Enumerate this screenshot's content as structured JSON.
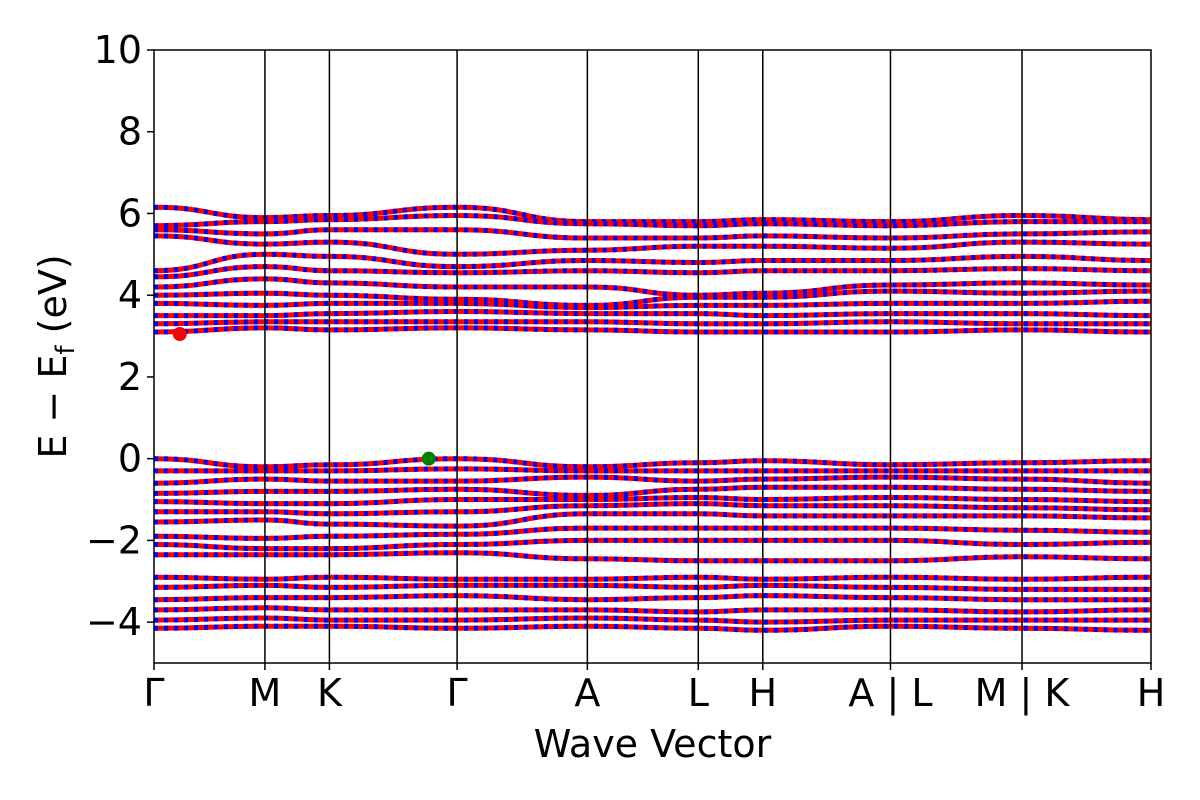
{
  "chart_data": {
    "type": "line",
    "xlabel": "Wave Vector",
    "ylabel_main": "E − E",
    "ylabel_sub": "f",
    "ylabel_unit": "(eV)",
    "ylim": [
      -5,
      10
    ],
    "yticks": [
      {
        "value": 10,
        "label": "10"
      },
      {
        "value": 8,
        "label": "8"
      },
      {
        "value": 6,
        "label": "6"
      },
      {
        "value": 4,
        "label": "4"
      },
      {
        "value": 2,
        "label": "2"
      },
      {
        "value": 0,
        "label": "0"
      },
      {
        "value": -2,
        "label": "−2"
      },
      {
        "value": -4,
        "label": "−4"
      }
    ],
    "xlim": [
      0,
      7.73
    ],
    "kpoints": [
      {
        "x": 0.0,
        "label": "Γ"
      },
      {
        "x": 0.86,
        "label": "M"
      },
      {
        "x": 1.36,
        "label": "K"
      },
      {
        "x": 2.35,
        "label": "Γ"
      },
      {
        "x": 3.36,
        "label": "A"
      },
      {
        "x": 4.22,
        "label": "L"
      },
      {
        "x": 4.72,
        "label": "H"
      },
      {
        "x": 5.71,
        "label": "A | L"
      },
      {
        "x": 6.73,
        "label": "M | K"
      },
      {
        "x": 7.73,
        "label": "H"
      }
    ],
    "cbm": {
      "x": 0.2,
      "y": 3.05,
      "color": "#ff0000"
    },
    "vbm": {
      "x": 2.13,
      "y": 0.0,
      "color": "#008000"
    },
    "band_colors": [
      "#ff0000",
      "#0000ff"
    ],
    "bands_description": "spin-up (red) and spin-down (blue) overlapping bands",
    "conduction_bands": [
      [
        6.15,
        5.9,
        5.95,
        6.15,
        5.8,
        5.8,
        5.85,
        5.8,
        5.95,
        5.85
      ],
      [
        5.7,
        5.8,
        5.85,
        5.95,
        5.75,
        5.7,
        5.75,
        5.7,
        5.8,
        5.8
      ],
      [
        5.6,
        5.5,
        5.6,
        5.6,
        5.4,
        5.4,
        5.45,
        5.4,
        5.5,
        5.55
      ],
      [
        5.45,
        5.25,
        5.3,
        5.0,
        5.1,
        5.2,
        5.2,
        5.15,
        5.3,
        5.25
      ],
      [
        4.6,
        5.0,
        4.95,
        4.7,
        4.85,
        4.8,
        4.85,
        4.85,
        4.95,
        4.85
      ],
      [
        4.45,
        4.7,
        4.6,
        4.55,
        4.6,
        4.55,
        4.6,
        4.6,
        4.65,
        4.6
      ],
      [
        4.2,
        4.4,
        4.3,
        4.2,
        4.2,
        4.0,
        4.05,
        4.25,
        4.3,
        4.25
      ],
      [
        4.0,
        4.05,
        4.0,
        3.9,
        3.75,
        3.95,
        3.95,
        4.1,
        4.05,
        4.1
      ],
      [
        3.8,
        3.75,
        3.8,
        3.8,
        3.7,
        3.75,
        3.75,
        3.8,
        3.8,
        3.85
      ],
      [
        3.5,
        3.5,
        3.55,
        3.6,
        3.55,
        3.55,
        3.5,
        3.55,
        3.55,
        3.5
      ],
      [
        3.3,
        3.35,
        3.35,
        3.35,
        3.35,
        3.3,
        3.3,
        3.35,
        3.3,
        3.3
      ],
      [
        3.1,
        3.2,
        3.15,
        3.2,
        3.15,
        3.1,
        3.1,
        3.1,
        3.15,
        3.1
      ]
    ],
    "valence_bands": [
      [
        0.0,
        -0.2,
        -0.15,
        0.0,
        -0.2,
        -0.1,
        -0.05,
        -0.15,
        -0.1,
        -0.05
      ],
      [
        -0.3,
        -0.3,
        -0.3,
        -0.25,
        -0.3,
        -0.3,
        -0.3,
        -0.3,
        -0.3,
        -0.3
      ],
      [
        -0.6,
        -0.5,
        -0.55,
        -0.55,
        -0.45,
        -0.55,
        -0.5,
        -0.45,
        -0.5,
        -0.6
      ],
      [
        -0.85,
        -0.8,
        -0.8,
        -0.75,
        -0.9,
        -0.75,
        -0.7,
        -0.7,
        -0.75,
        -0.8
      ],
      [
        -1.05,
        -1.1,
        -1.1,
        -1.0,
        -1.0,
        -0.95,
        -1.0,
        -0.95,
        -1.0,
        -1.05
      ],
      [
        -1.3,
        -1.3,
        -1.35,
        -1.3,
        -1.15,
        -1.1,
        -1.15,
        -1.15,
        -1.2,
        -1.25
      ],
      [
        -1.55,
        -1.5,
        -1.6,
        -1.65,
        -1.35,
        -1.35,
        -1.4,
        -1.4,
        -1.4,
        -1.45
      ],
      [
        -1.9,
        -1.95,
        -1.9,
        -1.85,
        -1.7,
        -1.7,
        -1.7,
        -1.7,
        -1.75,
        -1.8
      ],
      [
        -2.1,
        -2.2,
        -2.2,
        -2.1,
        -2.0,
        -2.0,
        -2.0,
        -2.0,
        -2.1,
        -2.05
      ],
      [
        -2.35,
        -2.35,
        -2.35,
        -2.3,
        -2.45,
        -2.5,
        -2.5,
        -2.5,
        -2.4,
        -2.45
      ],
      [
        -2.9,
        -2.95,
        -2.9,
        -2.95,
        -2.95,
        -2.9,
        -2.95,
        -2.9,
        -2.95,
        -2.9
      ],
      [
        -3.15,
        -3.1,
        -3.15,
        -3.1,
        -3.1,
        -3.15,
        -3.1,
        -3.15,
        -3.2,
        -3.2
      ],
      [
        -3.45,
        -3.4,
        -3.4,
        -3.35,
        -3.45,
        -3.4,
        -3.35,
        -3.4,
        -3.45,
        -3.45
      ],
      [
        -3.7,
        -3.65,
        -3.7,
        -3.7,
        -3.7,
        -3.75,
        -3.7,
        -3.7,
        -3.75,
        -3.7
      ],
      [
        -3.95,
        -3.9,
        -3.95,
        -3.95,
        -3.9,
        -3.95,
        -4.0,
        -3.95,
        -3.95,
        -3.95
      ],
      [
        -4.15,
        -4.1,
        -4.1,
        -4.15,
        -4.1,
        -4.15,
        -4.2,
        -4.1,
        -4.15,
        -4.2
      ]
    ]
  }
}
